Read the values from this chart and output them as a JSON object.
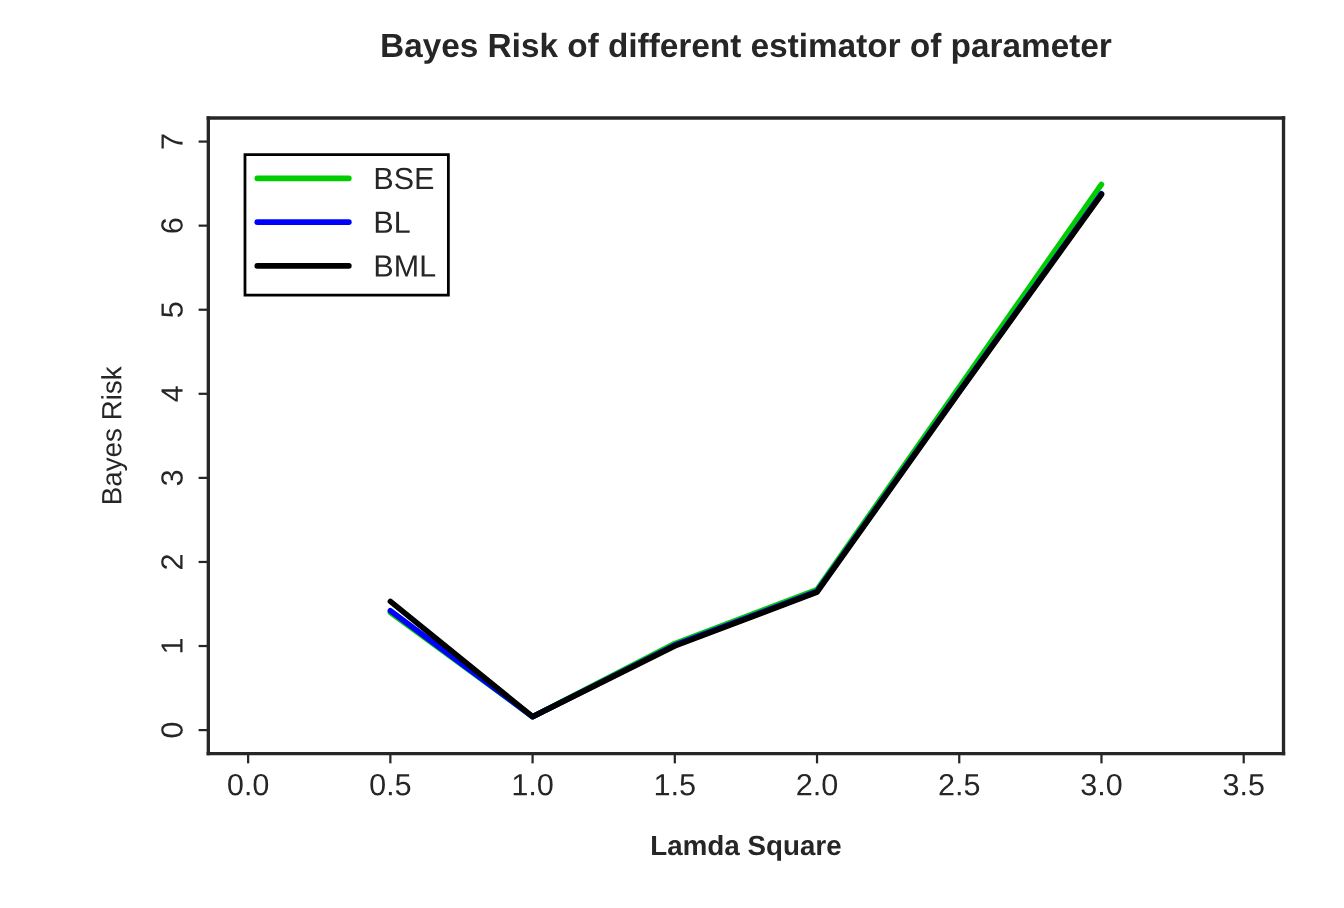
{
  "chart_data": {
    "type": "line",
    "title": "Bayes Risk of different estimator of parameter",
    "xlabel": "Lamda Square",
    "ylabel": "Bayes Risk",
    "x": [
      0.5,
      1.0,
      1.5,
      2.0,
      2.5,
      3.0
    ],
    "series": [
      {
        "name": "BSE",
        "color": "#00cd00",
        "values": [
          1.4,
          0.16,
          1.03,
          1.67,
          4.08,
          6.49
        ]
      },
      {
        "name": "BL",
        "color": "#0000ff",
        "values": [
          1.42,
          0.16,
          1.01,
          1.65,
          4.03,
          6.38
        ]
      },
      {
        "name": "BML",
        "color": "#000000",
        "values": [
          1.53,
          0.16,
          1.0,
          1.64,
          4.02,
          6.37
        ]
      }
    ],
    "xlim": [
      -0.14,
      3.64
    ],
    "ylim": [
      -0.28,
      7.28
    ],
    "xticks": [
      {
        "value": 0,
        "label": "0.0"
      },
      {
        "value": 0.5,
        "label": "0.5"
      },
      {
        "value": 1,
        "label": "1.0"
      },
      {
        "value": 1.5,
        "label": "1.5"
      },
      {
        "value": 2,
        "label": "2.0"
      },
      {
        "value": 2.5,
        "label": "2.5"
      },
      {
        "value": 3,
        "label": "3.0"
      },
      {
        "value": 3.5,
        "label": "3.5"
      }
    ],
    "yticks": [
      0,
      1,
      2,
      3,
      4,
      5,
      6,
      7
    ],
    "grid": false,
    "legend": "top left",
    "marker": "none",
    "line_style": "solid"
  }
}
